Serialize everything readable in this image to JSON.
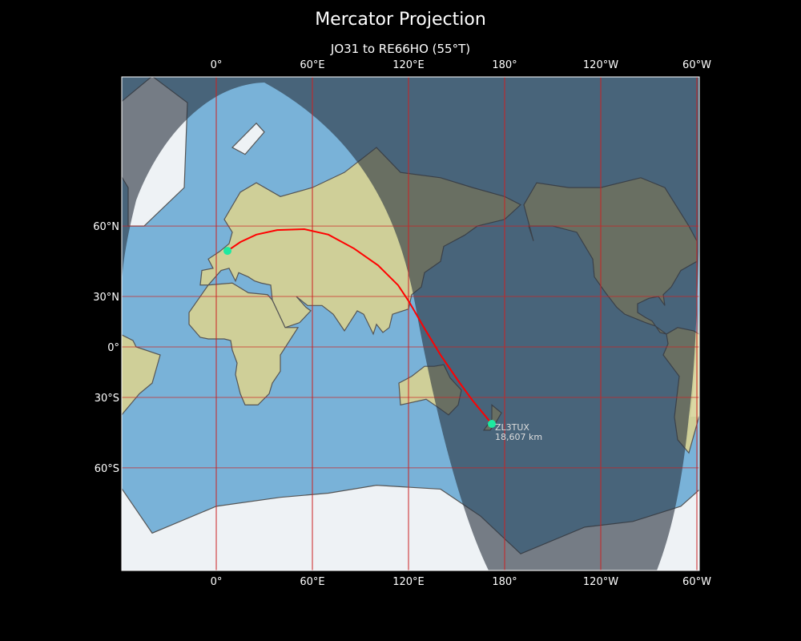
{
  "title": "Mercator Projection",
  "subtitle": "JO31 to RE66HO (55°T)",
  "projection": "mercator",
  "lon_range": [
    -59,
    301.5
  ],
  "lat_range": [
    -79.6,
    84.5
  ],
  "colors": {
    "path": "#ff0000",
    "marker": "#1de9a0",
    "grid": "#cc2222",
    "ocean": "#79b2d8",
    "land": "#d8d2a2",
    "night": "#2a3440"
  },
  "x_ticks": [
    {
      "lon": 0,
      "label": "0°"
    },
    {
      "lon": 60,
      "label": "60°E"
    },
    {
      "lon": 120,
      "label": "120°E"
    },
    {
      "lon": 180,
      "label": "180°"
    },
    {
      "lon": 240,
      "label": "120°W"
    },
    {
      "lon": 300,
      "label": "60°W"
    }
  ],
  "y_ticks": [
    {
      "lat": 60,
      "label": "60°N"
    },
    {
      "lat": 30,
      "label": "30°N"
    },
    {
      "lat": 0,
      "label": "0°"
    },
    {
      "lat": -30,
      "label": "30°S"
    },
    {
      "lat": -60,
      "label": "60°S"
    }
  ],
  "start": {
    "lon": 7,
    "lat": 51.3
  },
  "end": {
    "lon": 172,
    "lat": -43.2,
    "callsign": "ZL3TUX",
    "distance": "18,607 km"
  },
  "path": [
    [
      7,
      51.3
    ],
    [
      15,
      54.6
    ],
    [
      25,
      57.2
    ],
    [
      38,
      58.7
    ],
    [
      55,
      59.0
    ],
    [
      70,
      57.2
    ],
    [
      86,
      52.2
    ],
    [
      101,
      45.3
    ],
    [
      113.5,
      35.9
    ],
    [
      120.5,
      26.9
    ],
    [
      130,
      11.4
    ],
    [
      140,
      -5
    ],
    [
      151,
      -20.6
    ],
    [
      160,
      -31.7
    ],
    [
      172,
      -43.2
    ]
  ]
}
